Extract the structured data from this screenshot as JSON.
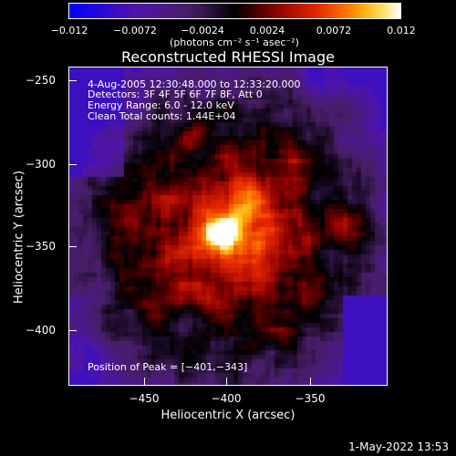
{
  "colorbar": {
    "ticks": [
      "−0.012",
      "−0.0072",
      "−0.0024",
      "0.0024",
      "0.0072",
      "0.012"
    ],
    "units": "(photons cm⁻² s⁻¹ asec⁻²)"
  },
  "title": "Reconstructed RHESSI Image",
  "overlay": {
    "time_range": "4-Aug-2005 12:30:48.000 to 12:33:20.000",
    "detectors": "Detectors: 3F 4F 5F 6F 7F 8F, Att 0",
    "energy": "Energy Range: 6.0 - 12.0 keV",
    "clean": "Clean     Total counts: 1.44E+04",
    "peak": "Position of Peak = [−401,−343]"
  },
  "axes": {
    "ylabel": "Heliocentric Y (arcsec)",
    "xlabel": "Heliocentric X (arcsec)",
    "yticks": [
      "−250",
      "−300",
      "−350",
      "−400"
    ],
    "xticks": [
      "−450",
      "−400",
      "−350"
    ]
  },
  "footer": {
    "date": "1-May-2022 13:53"
  }
}
